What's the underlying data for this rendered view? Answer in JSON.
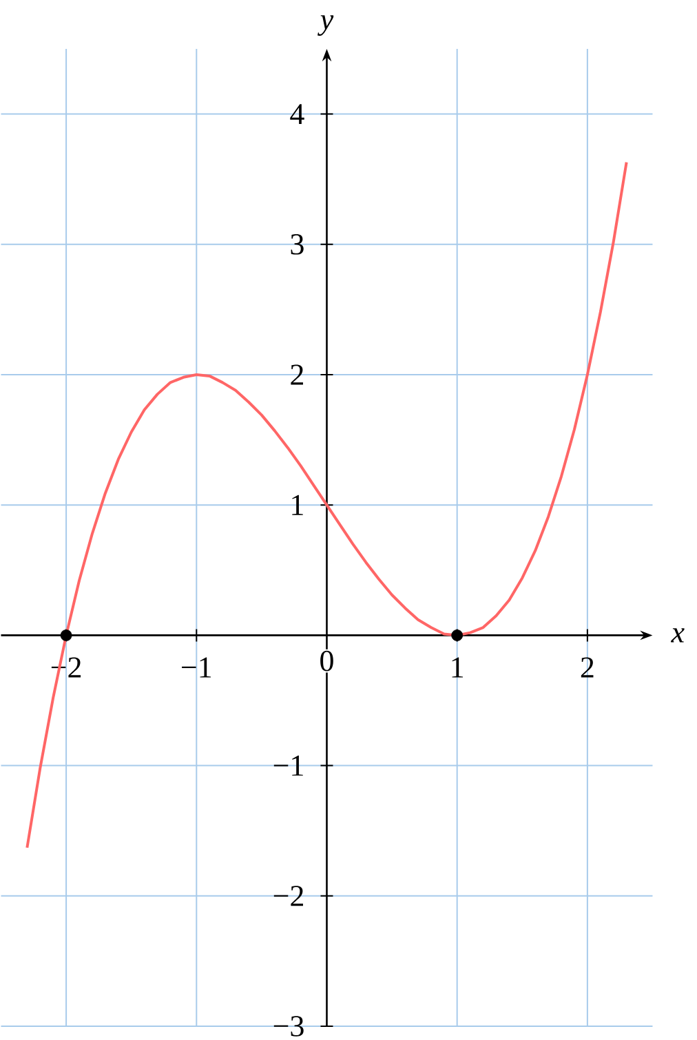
{
  "chart_data": {
    "type": "line",
    "xlabel": "x",
    "ylabel": "y",
    "xlim": [
      -2.5,
      2.5
    ],
    "ylim": [
      -3,
      4.5
    ],
    "xticks": [
      {
        "value": -2,
        "label": "−2"
      },
      {
        "value": -1,
        "label": "−1"
      },
      0,
      1,
      2
    ],
    "yticks": [
      {
        "value": -3,
        "label": "−3"
      },
      {
        "value": -2,
        "label": "−2"
      },
      {
        "value": -1,
        "label": "−1"
      },
      1,
      2,
      3,
      4
    ],
    "grid": true,
    "series": [
      {
        "type": "line",
        "color": "#ff6666",
        "marker": "none",
        "x": [
          -2.3,
          -2.2,
          -2.1,
          -2.0,
          -1.9,
          -1.8,
          -1.7,
          -1.6,
          -1.5,
          -1.4,
          -1.3,
          -1.2,
          -1.1,
          -1.0,
          -0.9,
          -0.8,
          -0.7,
          -0.6,
          -0.5,
          -0.4,
          -0.3,
          -0.2,
          -0.1,
          0,
          0.1,
          0.2,
          0.3,
          0.4,
          0.5,
          0.6,
          0.7,
          0.8,
          0.9,
          1.0,
          1.1,
          1.2,
          1.3,
          1.4,
          1.5,
          1.6,
          1.7,
          1.8,
          1.9,
          2.0,
          2.1,
          2.2,
          2.3
        ],
        "values": [
          -1.63,
          -1.02,
          -0.48,
          0,
          0.42,
          0.78,
          1.09,
          1.35,
          1.56,
          1.73,
          1.85,
          1.94,
          1.98,
          2,
          1.99,
          1.94,
          1.88,
          1.79,
          1.69,
          1.57,
          1.44,
          1.3,
          1.15,
          1,
          0.85,
          0.7,
          0.56,
          0.43,
          0.31,
          0.21,
          0.12,
          0.06,
          0.01,
          0,
          0.02,
          0.06,
          0.15,
          0.27,
          0.44,
          0.65,
          0.91,
          1.22,
          1.58,
          2,
          2.48,
          3.02,
          3.63
        ]
      },
      {
        "type": "scatter",
        "color": "#000000",
        "marker": "circle",
        "x": [
          -2,
          1
        ],
        "values": [
          0,
          0
        ]
      }
    ]
  }
}
